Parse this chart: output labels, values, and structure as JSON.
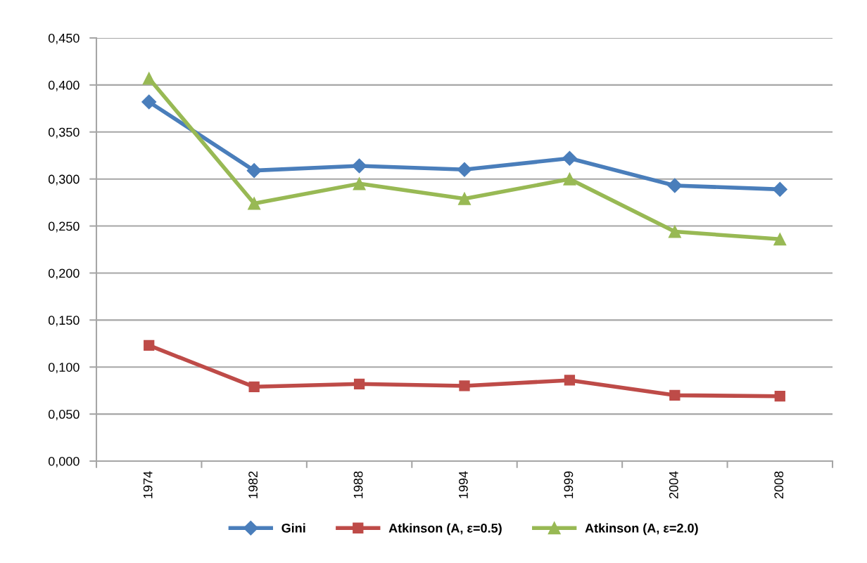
{
  "chart_data": {
    "type": "line",
    "categories": [
      "1974",
      "1982",
      "1988",
      "1994",
      "1999",
      "2004",
      "2008"
    ],
    "series": [
      {
        "name": "Gini",
        "color": "#4a7ebb",
        "marker": "diamond",
        "values": [
          0.382,
          0.309,
          0.314,
          0.31,
          0.322,
          0.293,
          0.289
        ]
      },
      {
        "name": "Atkinson (A, ε=0.5)",
        "color": "#be4b48",
        "marker": "square",
        "values": [
          0.123,
          0.079,
          0.082,
          0.08,
          0.086,
          0.07,
          0.069
        ]
      },
      {
        "name": "Atkinson (A, ε=2.0)",
        "color": "#98b954",
        "marker": "triangle",
        "values": [
          0.407,
          0.274,
          0.295,
          0.279,
          0.3,
          0.244,
          0.236
        ]
      }
    ],
    "ylim": [
      0,
      0.45
    ],
    "yticks": [
      {
        "value": 0,
        "label": "0,000"
      },
      {
        "value": 0.05,
        "label": "0,050"
      },
      {
        "value": 0.1,
        "label": "0,100"
      },
      {
        "value": 0.15,
        "label": "0,150"
      },
      {
        "value": 0.2,
        "label": "0,200"
      },
      {
        "value": 0.25,
        "label": "0,250"
      },
      {
        "value": 0.3,
        "label": "0,300"
      },
      {
        "value": 0.35,
        "label": "0,350"
      },
      {
        "value": 0.4,
        "label": "0,400"
      },
      {
        "value": 0.45,
        "label": "0,450"
      }
    ],
    "grid": "y",
    "legend": "bottom",
    "line_style": "solid"
  }
}
